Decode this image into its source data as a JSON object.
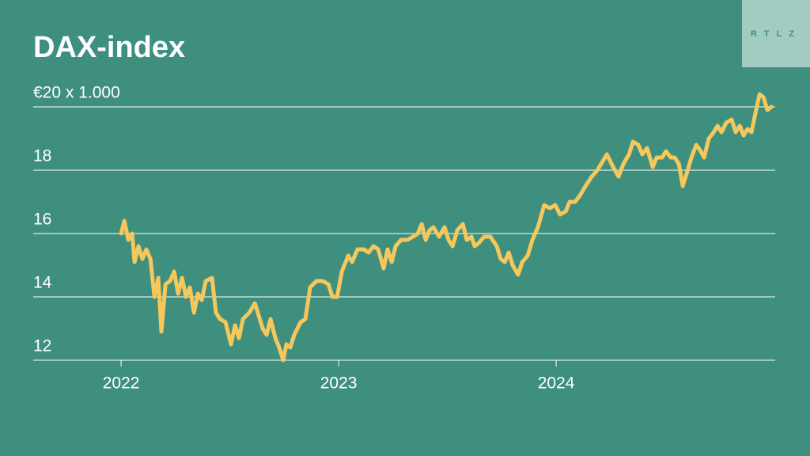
{
  "chart_data": {
    "type": "line",
    "title": "DAX-index",
    "logo": "RTLZ",
    "color": "#f6c75b",
    "background": "#3f8f7f",
    "grid": true,
    "xlim": [
      2021.596,
      2025.007
    ],
    "xticks": [
      2022,
      2023,
      2024
    ],
    "ylim": [
      12,
      20.5
    ],
    "yticks": [
      12,
      14,
      16,
      18,
      {
        "value": 20,
        "label": "€20 x 1.000"
      }
    ],
    "x": [
      2022.0,
      2022.015,
      2022.033,
      2022.051,
      2022.062,
      2022.08,
      2022.098,
      2022.116,
      2022.135,
      2022.153,
      2022.171,
      2022.185,
      2022.204,
      2022.225,
      2022.244,
      2022.262,
      2022.28,
      2022.298,
      2022.316,
      2022.335,
      2022.353,
      2022.371,
      2022.389,
      2022.418,
      2022.436,
      2022.455,
      2022.48,
      2022.505,
      2022.524,
      2022.542,
      2022.56,
      2022.589,
      2022.615,
      2022.633,
      2022.651,
      2022.669,
      2022.687,
      2022.709,
      2022.727,
      2022.745,
      2022.76,
      2022.778,
      2022.796,
      2022.825,
      2022.847,
      2022.869,
      2022.898,
      2022.927,
      2022.953,
      2022.971,
      2022.993,
      2023.015,
      2023.044,
      2023.062,
      2023.087,
      2023.116,
      2023.138,
      2023.16,
      2023.182,
      2023.207,
      2023.225,
      2023.244,
      2023.262,
      2023.287,
      2023.316,
      2023.342,
      2023.364,
      2023.382,
      2023.4,
      2023.418,
      2023.436,
      2023.462,
      2023.487,
      2023.505,
      2023.524,
      2023.545,
      2023.571,
      2023.589,
      2023.611,
      2023.625,
      2023.644,
      2023.669,
      2023.698,
      2023.727,
      2023.745,
      2023.764,
      2023.782,
      2023.8,
      2023.825,
      2023.844,
      2023.869,
      2023.891,
      2023.916,
      2023.945,
      2023.971,
      2023.996,
      2024.018,
      2024.044,
      2024.062,
      2024.087,
      2024.109,
      2024.135,
      2024.164,
      2024.189,
      2024.207,
      2024.233,
      2024.262,
      2024.287,
      2024.309,
      2024.335,
      2024.353,
      2024.378,
      2024.396,
      2024.418,
      2024.444,
      2024.462,
      2024.487,
      2024.505,
      2024.527,
      2024.545,
      2024.564,
      2024.582,
      2024.6,
      2024.622,
      2024.644,
      2024.665,
      2024.68,
      2024.702,
      2024.724,
      2024.742,
      2024.76,
      2024.782,
      2024.807,
      2024.825,
      2024.844,
      2024.862,
      2024.88,
      2024.898,
      2024.916,
      2024.935,
      2024.953,
      2024.971,
      2024.989
    ],
    "values": [
      16.0,
      16.4,
      15.8,
      16.0,
      15.1,
      15.6,
      15.2,
      15.5,
      15.2,
      14.0,
      14.6,
      12.9,
      14.4,
      14.5,
      14.8,
      14.1,
      14.6,
      14.0,
      14.3,
      13.5,
      14.1,
      13.9,
      14.5,
      14.6,
      13.5,
      13.3,
      13.2,
      12.5,
      13.1,
      12.7,
      13.3,
      13.5,
      13.8,
      13.4,
      13.0,
      12.8,
      13.3,
      12.7,
      12.4,
      12.0,
      12.5,
      12.4,
      12.8,
      13.2,
      13.3,
      14.3,
      14.5,
      14.5,
      14.4,
      14.0,
      14.0,
      14.8,
      15.3,
      15.1,
      15.5,
      15.5,
      15.4,
      15.6,
      15.5,
      14.9,
      15.5,
      15.1,
      15.6,
      15.8,
      15.8,
      15.9,
      16.0,
      16.3,
      15.8,
      16.1,
      16.2,
      15.9,
      16.2,
      15.8,
      15.6,
      16.1,
      16.3,
      15.8,
      15.9,
      15.6,
      15.7,
      15.9,
      15.9,
      15.6,
      15.2,
      15.1,
      15.4,
      15.0,
      14.7,
      15.1,
      15.3,
      15.8,
      16.2,
      16.9,
      16.8,
      16.9,
      16.6,
      16.7,
      17.0,
      17.0,
      17.2,
      17.5,
      17.8,
      18.0,
      18.2,
      18.5,
      18.1,
      17.8,
      18.2,
      18.5,
      18.9,
      18.8,
      18.5,
      18.7,
      18.1,
      18.4,
      18.4,
      18.6,
      18.4,
      18.4,
      18.2,
      17.5,
      17.9,
      18.4,
      18.8,
      18.6,
      18.4,
      19.0,
      19.2,
      19.4,
      19.2,
      19.5,
      19.6,
      19.2,
      19.4,
      19.1,
      19.3,
      19.2,
      19.8,
      20.4,
      20.3,
      19.9,
      20.0
    ]
  }
}
